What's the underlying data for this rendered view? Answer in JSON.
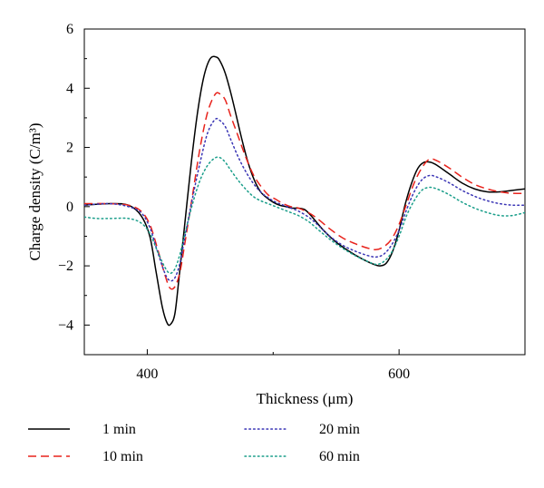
{
  "chart_data": {
    "type": "line",
    "title": "",
    "xlabel": "Thickness (μm)",
    "ylabel": "Charge density (C/m³)",
    "xlim": [
      350,
      700
    ],
    "ylim": [
      -5,
      6
    ],
    "xticks": [
      400,
      600
    ],
    "yticks": [
      -4,
      -2,
      0,
      2,
      4,
      6
    ],
    "xtick_labels": [
      "400",
      "600"
    ],
    "ytick_labels": [
      "−4",
      "−2",
      "0",
      "2",
      "4",
      "6"
    ],
    "grid": false,
    "legend_position": "bottom",
    "series": [
      {
        "name": "1 min",
        "color": "#000000",
        "dash": "solid",
        "x": [
          350,
          370,
          385,
          395,
          402,
          407,
          412,
          416,
          419,
          422,
          425,
          430,
          435,
          440,
          445,
          450,
          455,
          458,
          462,
          466,
          470,
          475,
          480,
          485,
          490,
          495,
          500,
          505,
          510,
          515,
          520,
          525,
          530,
          540,
          550,
          560,
          570,
          580,
          585,
          590,
          595,
          600,
          605,
          610,
          615,
          620,
          625,
          630,
          640,
          650,
          660,
          670,
          680,
          690,
          700
        ],
        "values": [
          0.05,
          0.1,
          0.05,
          -0.3,
          -1.0,
          -2.2,
          -3.4,
          -3.95,
          -3.95,
          -3.6,
          -2.5,
          -0.5,
          1.5,
          3.2,
          4.4,
          5.0,
          5.05,
          4.9,
          4.5,
          3.9,
          3.2,
          2.3,
          1.5,
          0.9,
          0.5,
          0.3,
          0.15,
          0.05,
          0.0,
          -0.05,
          -0.05,
          -0.1,
          -0.3,
          -0.8,
          -1.2,
          -1.5,
          -1.75,
          -1.95,
          -2.0,
          -1.9,
          -1.5,
          -0.8,
          0.1,
          0.8,
          1.3,
          1.5,
          1.5,
          1.4,
          1.1,
          0.8,
          0.6,
          0.5,
          0.5,
          0.55,
          0.6
        ]
      },
      {
        "name": "10 min",
        "color": "#e8231c",
        "dash": "dashed",
        "x": [
          350,
          370,
          385,
          395,
          402,
          408,
          414,
          418,
          422,
          426,
          430,
          436,
          442,
          448,
          454,
          458,
          462,
          466,
          472,
          478,
          484,
          490,
          496,
          502,
          508,
          514,
          520,
          528,
          535,
          545,
          555,
          565,
          575,
          582,
          588,
          594,
          600,
          606,
          612,
          618,
          624,
          630,
          640,
          650,
          660,
          670,
          680,
          690,
          700
        ],
        "values": [
          0.1,
          0.1,
          0.05,
          -0.15,
          -0.6,
          -1.4,
          -2.3,
          -2.75,
          -2.7,
          -2.2,
          -1.2,
          0.4,
          2.0,
          3.2,
          3.8,
          3.8,
          3.6,
          3.1,
          2.4,
          1.7,
          1.1,
          0.7,
          0.4,
          0.25,
          0.1,
          0.0,
          -0.05,
          -0.2,
          -0.4,
          -0.75,
          -1.05,
          -1.25,
          -1.4,
          -1.45,
          -1.35,
          -1.1,
          -0.6,
          0.1,
          0.8,
          1.3,
          1.6,
          1.55,
          1.3,
          1.0,
          0.75,
          0.6,
          0.5,
          0.45,
          0.45
        ]
      },
      {
        "name": "20 min",
        "color": "#3a35b5",
        "dash": "dotted",
        "x": [
          350,
          370,
          385,
          395,
          402,
          408,
          414,
          418,
          422,
          426,
          430,
          436,
          442,
          448,
          454,
          458,
          462,
          466,
          472,
          478,
          484,
          490,
          496,
          502,
          508,
          514,
          520,
          528,
          535,
          545,
          555,
          565,
          575,
          582,
          588,
          594,
          600,
          606,
          612,
          618,
          624,
          630,
          640,
          650,
          660,
          670,
          680,
          690,
          700
        ],
        "values": [
          0.05,
          0.1,
          0.0,
          -0.2,
          -0.7,
          -1.5,
          -2.25,
          -2.5,
          -2.4,
          -1.9,
          -1.0,
          0.3,
          1.5,
          2.5,
          2.95,
          2.9,
          2.7,
          2.3,
          1.7,
          1.2,
          0.8,
          0.5,
          0.3,
          0.15,
          0.05,
          -0.05,
          -0.15,
          -0.35,
          -0.6,
          -1.0,
          -1.3,
          -1.5,
          -1.65,
          -1.7,
          -1.6,
          -1.3,
          -0.8,
          -0.1,
          0.5,
          0.9,
          1.05,
          1.0,
          0.8,
          0.55,
          0.35,
          0.2,
          0.1,
          0.05,
          0.05
        ]
      },
      {
        "name": "60 min",
        "color": "#1a9e8a",
        "dash": "dotted",
        "x": [
          350,
          360,
          370,
          385,
          395,
          402,
          408,
          414,
          418,
          422,
          426,
          430,
          436,
          442,
          448,
          454,
          458,
          462,
          466,
          472,
          478,
          484,
          490,
          496,
          502,
          508,
          514,
          520,
          528,
          535,
          545,
          555,
          565,
          575,
          582,
          588,
          594,
          600,
          606,
          612,
          618,
          624,
          630,
          640,
          650,
          660,
          670,
          680,
          690,
          700
        ],
        "values": [
          -0.35,
          -0.4,
          -0.4,
          -0.4,
          -0.55,
          -0.9,
          -1.5,
          -2.05,
          -2.25,
          -2.1,
          -1.6,
          -0.9,
          0.1,
          0.9,
          1.4,
          1.65,
          1.65,
          1.5,
          1.25,
          0.9,
          0.6,
          0.35,
          0.2,
          0.1,
          0.0,
          -0.1,
          -0.2,
          -0.3,
          -0.5,
          -0.75,
          -1.1,
          -1.4,
          -1.65,
          -1.85,
          -1.95,
          -1.85,
          -1.55,
          -1.0,
          -0.3,
          0.2,
          0.55,
          0.65,
          0.6,
          0.4,
          0.15,
          -0.05,
          -0.2,
          -0.3,
          -0.3,
          -0.2
        ]
      }
    ]
  }
}
